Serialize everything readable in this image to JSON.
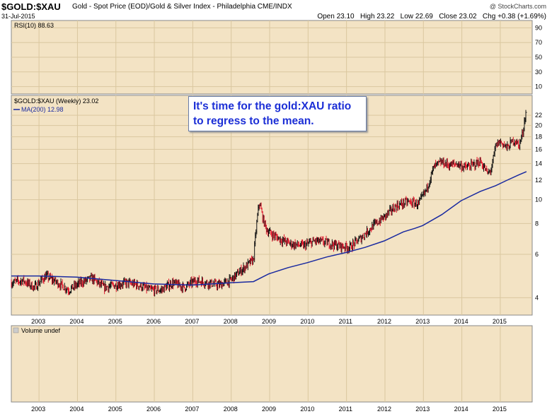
{
  "header": {
    "symbol": "$GOLD:$XAU",
    "description": "Gold - Spot Price (EOD)/Gold & Silver Index - Philadelphia CME/INDX",
    "date": "31-Jul-2015",
    "watermark": "@ StockCharts.com",
    "open_label": "Open",
    "open": "23.10",
    "high_label": "High",
    "high": "23.22",
    "low_label": "Low",
    "low": "22.69",
    "close_label": "Close",
    "close": "23.02",
    "chg_label": "Chg",
    "chg": "+0.38 (+1.69%)"
  },
  "annotation": {
    "line1": "It's time for the gold:XAU ratio",
    "line2": "to regress to the mean."
  },
  "colors": {
    "panel_bg": "#f3e3c4",
    "grid": "#dac79f",
    "ma_line": "#1a2aa0",
    "up_bar": "#111111",
    "down_bar": "#e0142a",
    "text_blue": "#1c2fd6"
  },
  "chart_data": [
    {
      "type": "line",
      "panel": "rsi",
      "title": "RSI(10) 88.63",
      "series": [
        {
          "name": "RSI(10)",
          "values": []
        }
      ],
      "y_ticks": [
        "90",
        "70",
        "50",
        "30",
        "10"
      ],
      "ylim": [
        0,
        100
      ]
    },
    {
      "type": "ohlc",
      "panel": "price",
      "title": "$GOLD:$XAU (Weekly) 23.02",
      "legend_ma": "MA(200) 12.98",
      "scale": "log",
      "ylim": [
        3.4,
        26.5
      ],
      "y_ticks": [
        4,
        6,
        8,
        10,
        12,
        14,
        16,
        18,
        20,
        22
      ],
      "x_ticks": [
        "2003",
        "2004",
        "2005",
        "2006",
        "2007",
        "2008",
        "2009",
        "2010",
        "2011",
        "2012",
        "2013",
        "2014",
        "2015"
      ],
      "xlim": [
        2002.3,
        2015.85
      ],
      "series": [
        {
          "name": "$GOLD:$XAU",
          "x": [
            2002.3,
            2002.6,
            2002.9,
            2003.2,
            2003.5,
            2003.8,
            2004.1,
            2004.4,
            2004.7,
            2005.0,
            2005.3,
            2005.6,
            2005.9,
            2006.2,
            2006.5,
            2006.8,
            2007.1,
            2007.4,
            2007.7,
            2008.0,
            2008.3,
            2008.6,
            2008.75,
            2008.85,
            2008.95,
            2009.1,
            2009.3,
            2009.6,
            2009.9,
            2010.2,
            2010.5,
            2010.8,
            2011.1,
            2011.4,
            2011.7,
            2012.0,
            2012.3,
            2012.6,
            2012.9,
            2013.1,
            2013.3,
            2013.5,
            2013.7,
            2013.9,
            2014.1,
            2014.3,
            2014.5,
            2014.7,
            2014.8,
            2014.9,
            2015.0,
            2015.1,
            2015.2,
            2015.3,
            2015.4,
            2015.5,
            2015.6,
            2015.65,
            2015.7
          ],
          "values": [
            4.6,
            4.7,
            4.4,
            4.9,
            4.6,
            4.3,
            4.6,
            4.8,
            4.4,
            4.5,
            4.6,
            4.5,
            4.3,
            4.3,
            4.6,
            4.4,
            4.7,
            4.6,
            4.5,
            4.7,
            5.2,
            5.7,
            9.8,
            8.3,
            7.5,
            7.2,
            6.9,
            6.6,
            6.5,
            6.8,
            6.7,
            6.5,
            6.4,
            7.0,
            7.8,
            8.5,
            9.4,
            9.8,
            9.6,
            11.0,
            13.6,
            14.2,
            13.8,
            14.0,
            13.5,
            13.8,
            14.3,
            12.7,
            13.5,
            16.5,
            17.2,
            16.8,
            16.2,
            17.0,
            17.5,
            16.5,
            18.5,
            21.0,
            23.02
          ]
        },
        {
          "name": "MA(200)",
          "x": [
            2002.3,
            2003.0,
            2004.0,
            2005.0,
            2006.0,
            2007.0,
            2008.0,
            2008.6,
            2009.0,
            2009.5,
            2010.0,
            2010.5,
            2011.0,
            2011.5,
            2012.0,
            2012.5,
            2012.8,
            2013.0,
            2013.5,
            2014.0,
            2014.5,
            2014.9,
            2015.2,
            2015.5,
            2015.7
          ],
          "values": [
            4.9,
            4.9,
            4.85,
            4.7,
            4.55,
            4.5,
            4.6,
            4.65,
            5.0,
            5.3,
            5.55,
            5.85,
            6.1,
            6.4,
            6.8,
            7.4,
            7.65,
            7.85,
            8.7,
            9.9,
            10.8,
            11.4,
            12.0,
            12.6,
            13.0
          ]
        }
      ]
    },
    {
      "type": "bar",
      "panel": "volume",
      "title": "Volume undef",
      "x_ticks": [
        "2003",
        "2004",
        "2005",
        "2006",
        "2007",
        "2008",
        "2009",
        "2010",
        "2011",
        "2012",
        "2013",
        "2014",
        "2015"
      ],
      "values": []
    }
  ]
}
